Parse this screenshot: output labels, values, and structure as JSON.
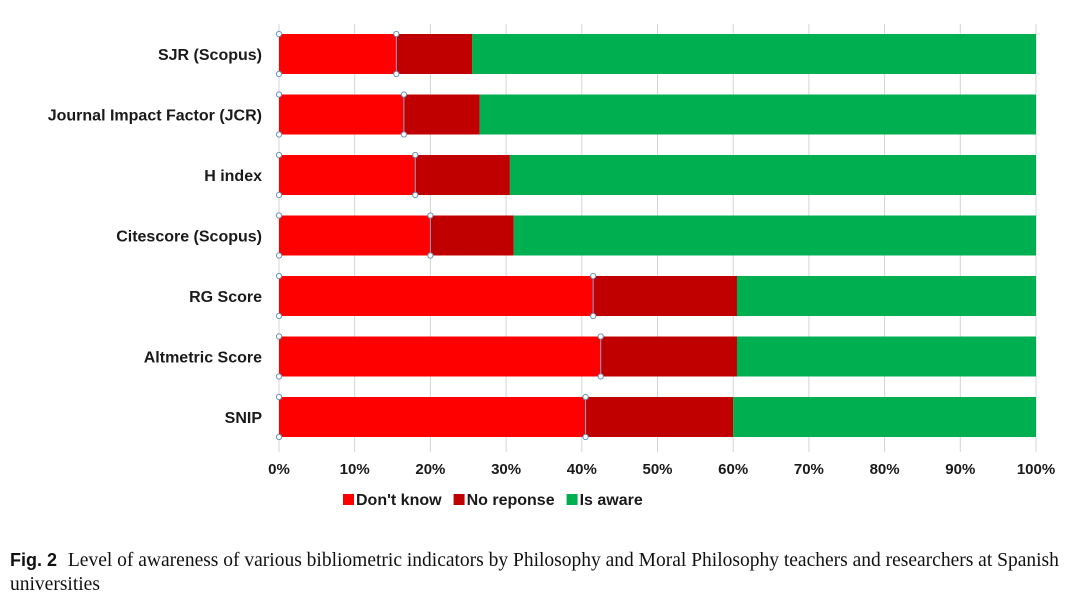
{
  "chart_data": {
    "type": "bar",
    "orientation": "horizontal",
    "stacked": true,
    "percent_stacked": true,
    "categories": [
      "SJR (Scopus)",
      "Journal Impact Factor (JCR)",
      "H index",
      "Citescore (Scopus)",
      "RG Score",
      "Altmetric Score",
      "SNIP"
    ],
    "series": [
      {
        "name": "Don't know",
        "color": "#ff0000",
        "values": [
          15.5,
          16.5,
          18,
          20,
          41.5,
          42.5,
          40.5
        ]
      },
      {
        "name": "No reponse",
        "color": "#c00000",
        "values": [
          10,
          10,
          12.5,
          11,
          19,
          18,
          19.5
        ]
      },
      {
        "name": "Is aware",
        "color": "#00b050",
        "values": [
          74.5,
          73.5,
          69.5,
          69,
          39.5,
          39.5,
          40
        ]
      }
    ],
    "xticks": [
      "0%",
      "10%",
      "20%",
      "30%",
      "40%",
      "50%",
      "60%",
      "70%",
      "80%",
      "90%",
      "100%"
    ],
    "xlim": [
      0,
      100
    ],
    "grid": "vertical",
    "legend": "bottom"
  },
  "caption": {
    "label": "Fig. 2",
    "text": "Level of awareness of various bibliometric indicators by Philosophy and Moral Philosophy teachers and researchers at Spanish universities"
  }
}
